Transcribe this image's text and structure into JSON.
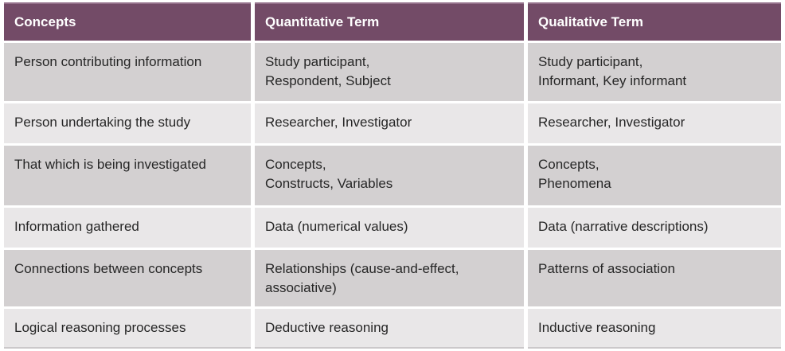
{
  "chart_data": {
    "type": "table",
    "columns": [
      "Concepts",
      "Quantitative Term",
      "Qualitative Term"
    ],
    "rows": [
      [
        "Person contributing information",
        [
          "Study participant,",
          "Respondent, Subject"
        ],
        [
          "Study participant,",
          "Informant, Key informant"
        ]
      ],
      [
        "Person undertaking the study",
        "Researcher, Investigator",
        "Researcher, Investigator"
      ],
      [
        "That which is being investigated",
        [
          "Concepts,",
          "Constructs, Variables"
        ],
        [
          "Concepts,",
          "Phenomena"
        ]
      ],
      [
        "Information gathered",
        "Data (numerical values)",
        "Data (narrative descriptions)"
      ],
      [
        "Connections between concepts",
        [
          "Relationships (cause-and-effect,",
          "associative)"
        ],
        "Patterns of association"
      ],
      [
        "Logical reasoning processes",
        "Deductive reasoning",
        "Inductive reasoning"
      ]
    ],
    "layout": {
      "header_position": "top",
      "banding": "alternating-rows",
      "band_order": [
        "dark",
        "light",
        "dark",
        "light",
        "dark",
        "light"
      ]
    }
  },
  "colors": {
    "header_bg": "#734b67",
    "header_top_border": "#94708a",
    "header_text": "#ffffff",
    "row_band_dark": "#d3d0d1",
    "row_band_light": "#e9e7e8",
    "body_text": "#262626",
    "gutter": "#ffffff"
  }
}
